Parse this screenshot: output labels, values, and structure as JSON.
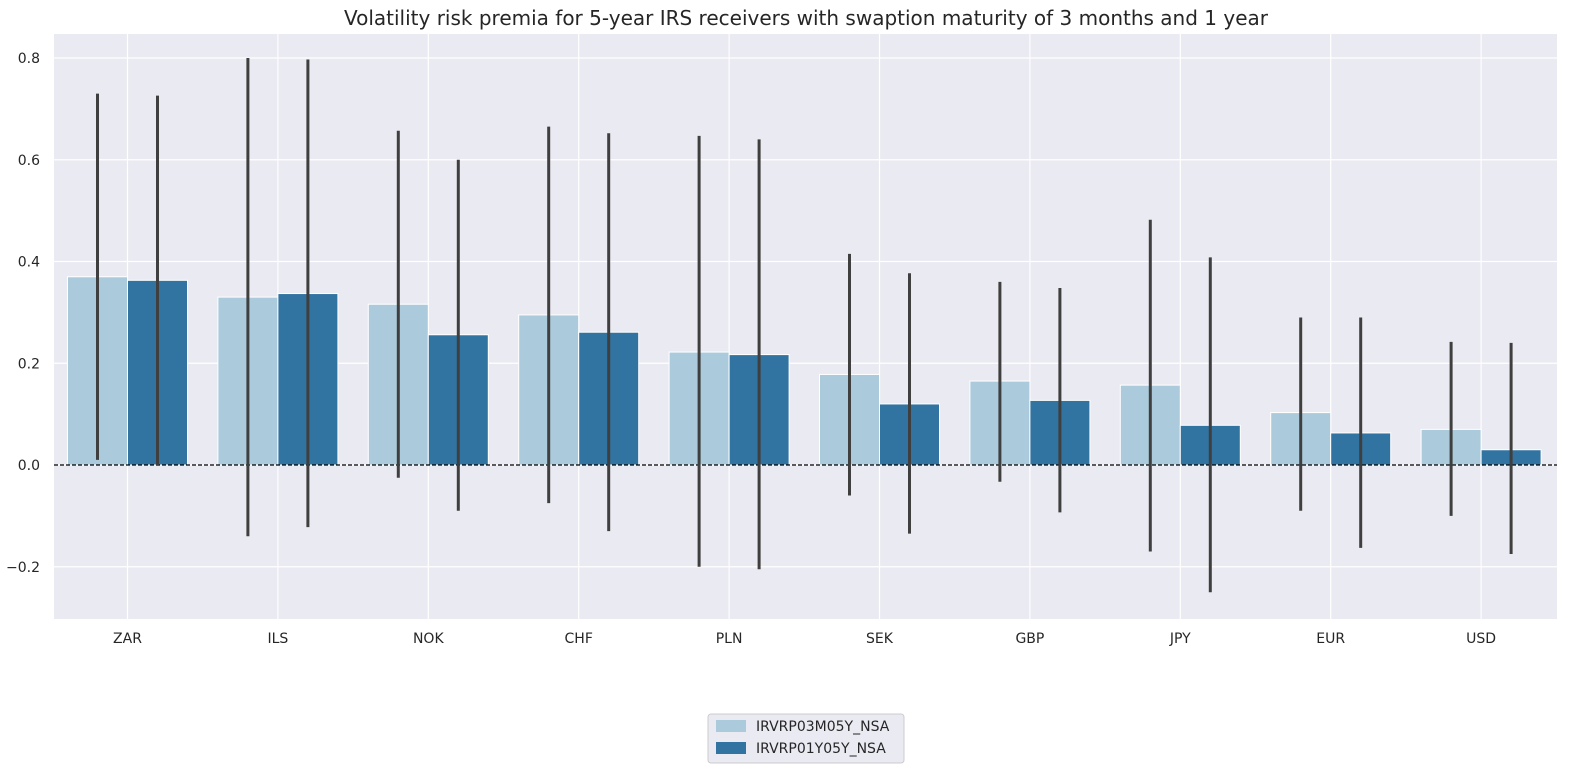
{
  "chart_data": {
    "type": "bar",
    "title": "Volatility risk premia for 5-year IRS receivers with swaption maturity of 3 months and 1 year",
    "xlabel": "",
    "ylabel": "",
    "categories": [
      "ZAR",
      "ILS",
      "NOK",
      "CHF",
      "PLN",
      "SEK",
      "GBP",
      "JPY",
      "EUR",
      "USD"
    ],
    "yticks": [
      "−0.2",
      "0.0",
      "0.2",
      "0.4",
      "0.6",
      "0.8"
    ],
    "ylim": [
      -0.3,
      0.85
    ],
    "grid": true,
    "reference_line": 0,
    "legend_position": "bottom-center",
    "series": [
      {
        "name": "IRVRP03M05Y_NSA",
        "color": "#abcbdc",
        "values": [
          0.37,
          0.33,
          0.316,
          0.295,
          0.222,
          0.178,
          0.165,
          0.157,
          0.103,
          0.07
        ],
        "err_low": [
          0.01,
          -0.14,
          -0.025,
          -0.075,
          -0.2,
          -0.06,
          -0.033,
          -0.17,
          -0.09,
          -0.1
        ],
        "err_high": [
          0.73,
          0.8,
          0.657,
          0.665,
          0.647,
          0.415,
          0.36,
          0.482,
          0.29,
          0.242
        ]
      },
      {
        "name": "IRVRP01Y05Y_NSA",
        "color": "#3274a1",
        "values": [
          0.363,
          0.337,
          0.256,
          0.261,
          0.217,
          0.12,
          0.127,
          0.078,
          0.063,
          0.03
        ],
        "err_low": [
          0.0,
          -0.122,
          -0.09,
          -0.13,
          -0.205,
          -0.135,
          -0.093,
          -0.25,
          -0.163,
          -0.175
        ],
        "err_high": [
          0.726,
          0.797,
          0.6,
          0.652,
          0.64,
          0.377,
          0.348,
          0.408,
          0.29,
          0.24
        ]
      }
    ]
  }
}
